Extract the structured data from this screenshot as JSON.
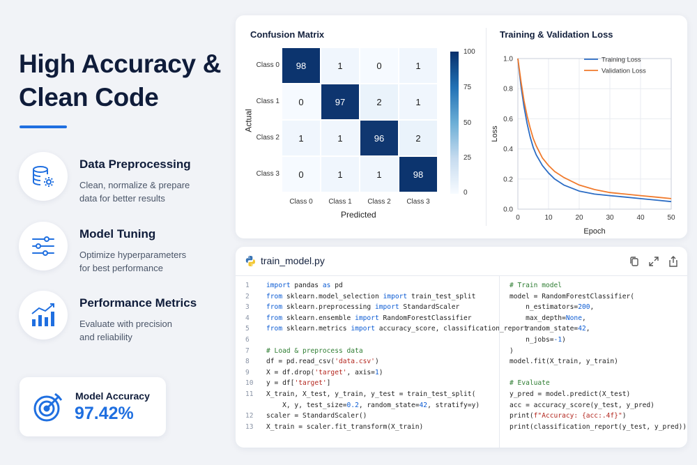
{
  "headline": {
    "line1": "High Accuracy &",
    "line2": "Clean Code"
  },
  "accent_color": "#1f6fe0",
  "features": [
    {
      "icon": "database-gear-icon",
      "title": "Data Preprocessing",
      "desc_line1": "Clean, normalize & prepare",
      "desc_line2": "data for better results"
    },
    {
      "icon": "sliders-icon",
      "title": "Model Tuning",
      "desc_line1": "Optimize hyperparameters",
      "desc_line2": "for best performance"
    },
    {
      "icon": "bar-chart-trend-icon",
      "title": "Performance Metrics",
      "desc_line1": "Evaluate with precision",
      "desc_line2": "and reliability"
    }
  ],
  "accuracy": {
    "icon": "target-icon",
    "label": "Model Accuracy",
    "value": "97.42%"
  },
  "confusion_matrix": {
    "title": "Confusion Matrix",
    "xlabel": "Predicted",
    "ylabel": "Actual",
    "classes": [
      "Class 0",
      "Class 1",
      "Class 2",
      "Class 3"
    ],
    "colorbar_ticks": [
      "100",
      "75",
      "50",
      "25",
      "0"
    ]
  },
  "loss_chart": {
    "title": "Training & Validation Loss",
    "xlabel": "Epoch",
    "ylabel": "Loss",
    "legend": [
      "Training Loss",
      "Validation Loss"
    ],
    "legend_position": "top-right"
  },
  "chart_data": [
    {
      "type": "heatmap",
      "title": "Confusion Matrix",
      "xlabel": "Predicted",
      "ylabel": "Actual",
      "x_categories": [
        "Class 0",
        "Class 1",
        "Class 2",
        "Class 3"
      ],
      "y_categories": [
        "Class 0",
        "Class 1",
        "Class 2",
        "Class 3"
      ],
      "values": [
        [
          98,
          1,
          0,
          1
        ],
        [
          0,
          97,
          2,
          1
        ],
        [
          1,
          1,
          96,
          2
        ],
        [
          0,
          1,
          1,
          98
        ]
      ],
      "colorbar_range": [
        0,
        100
      ]
    },
    {
      "type": "line",
      "title": "Training & Validation Loss",
      "xlabel": "Epoch",
      "ylabel": "Loss",
      "x": [
        0,
        1,
        2,
        3,
        4,
        5,
        6,
        8,
        10,
        12,
        15,
        20,
        25,
        30,
        35,
        40,
        45,
        50
      ],
      "series": [
        {
          "name": "Training Loss",
          "color": "#2b6cc4",
          "values": [
            1.0,
            0.82,
            0.68,
            0.57,
            0.48,
            0.41,
            0.36,
            0.29,
            0.24,
            0.2,
            0.16,
            0.12,
            0.1,
            0.09,
            0.08,
            0.07,
            0.06,
            0.05
          ]
        },
        {
          "name": "Validation Loss",
          "color": "#f07a2c",
          "values": [
            1.0,
            0.85,
            0.72,
            0.62,
            0.54,
            0.47,
            0.42,
            0.34,
            0.29,
            0.25,
            0.21,
            0.16,
            0.13,
            0.11,
            0.1,
            0.09,
            0.08,
            0.07
          ]
        }
      ],
      "xlim": [
        0,
        50
      ],
      "ylim": [
        0,
        1.0
      ],
      "xticks": [
        0,
        10,
        20,
        30,
        40,
        50
      ],
      "yticks": [
        0.0,
        0.2,
        0.4,
        0.6,
        0.8,
        1.0
      ],
      "grid": true,
      "legend_position": "top-right"
    }
  ],
  "code": {
    "filename": "train_model.py",
    "header_icons": [
      "copy-icon",
      "expand-icon",
      "share-icon"
    ],
    "left_lines": [
      {
        "n": "1",
        "segs": [
          [
            "kw",
            "import"
          ],
          [
            "t",
            " pandas "
          ],
          [
            "kw",
            "as"
          ],
          [
            "t",
            " pd"
          ]
        ]
      },
      {
        "n": "2",
        "segs": [
          [
            "kw",
            "from"
          ],
          [
            "t",
            " sklearn.model_selection "
          ],
          [
            "kw",
            "import"
          ],
          [
            "t",
            " train_test_split"
          ]
        ]
      },
      {
        "n": "3",
        "segs": [
          [
            "kw",
            "from"
          ],
          [
            "t",
            " sklearn.preprocessing "
          ],
          [
            "kw",
            "import"
          ],
          [
            "t",
            " StandardScaler"
          ]
        ]
      },
      {
        "n": "4",
        "segs": [
          [
            "kw",
            "from"
          ],
          [
            "t",
            " sklearn.ensemble "
          ],
          [
            "kw",
            "import"
          ],
          [
            "t",
            " RandomForestClassifier"
          ]
        ]
      },
      {
        "n": "5",
        "segs": [
          [
            "kw",
            "from"
          ],
          [
            "t",
            " sklearn.metrics "
          ],
          [
            "kw",
            "import"
          ],
          [
            "t",
            " accuracy_score, classification_report"
          ]
        ]
      },
      {
        "n": "6",
        "segs": []
      },
      {
        "n": "7",
        "segs": [
          [
            "cmt",
            "# Load & preprocess data"
          ]
        ]
      },
      {
        "n": "8",
        "segs": [
          [
            "t",
            "df = pd.read_csv("
          ],
          [
            "str",
            "'data.csv'"
          ],
          [
            "t",
            ")"
          ]
        ]
      },
      {
        "n": "9",
        "segs": [
          [
            "t",
            "X = df.drop("
          ],
          [
            "str",
            "'target'"
          ],
          [
            "t",
            ", axis="
          ],
          [
            "num",
            "1"
          ],
          [
            "t",
            ")"
          ]
        ]
      },
      {
        "n": "10",
        "segs": [
          [
            "t",
            "y = df["
          ],
          [
            "str",
            "'target'"
          ],
          [
            "t",
            "]"
          ]
        ]
      },
      {
        "n": "11",
        "segs": [
          [
            "t",
            "X_train, X_test, y_train, y_test = train_test_split("
          ]
        ]
      },
      {
        "n": "",
        "segs": [
          [
            "t",
            "    X, y, test_size="
          ],
          [
            "num",
            "0.2"
          ],
          [
            "t",
            ", random_state="
          ],
          [
            "num",
            "42"
          ],
          [
            "t",
            ", stratify=y)"
          ]
        ]
      },
      {
        "n": "12",
        "segs": [
          [
            "t",
            "scaler = StandardScaler()"
          ]
        ]
      },
      {
        "n": "13",
        "segs": [
          [
            "t",
            "X_train = scaler.fit_transform(X_train)"
          ]
        ]
      }
    ],
    "right_lines": [
      {
        "segs": [
          [
            "cmt",
            "# Train model"
          ]
        ]
      },
      {
        "segs": [
          [
            "t",
            "model = RandomForestClassifier("
          ]
        ]
      },
      {
        "segs": [
          [
            "t",
            "    n_estimators="
          ],
          [
            "num",
            "200"
          ],
          [
            "t",
            ","
          ]
        ]
      },
      {
        "segs": [
          [
            "t",
            "    max_depth="
          ],
          [
            "kw",
            "None"
          ],
          [
            "t",
            ","
          ]
        ]
      },
      {
        "segs": [
          [
            "t",
            "    random_state="
          ],
          [
            "num",
            "42"
          ],
          [
            "t",
            ","
          ]
        ]
      },
      {
        "segs": [
          [
            "t",
            "    n_jobs="
          ],
          [
            "num",
            "-1"
          ],
          [
            "t",
            ")"
          ]
        ]
      },
      {
        "segs": [
          [
            "t",
            ")"
          ]
        ]
      },
      {
        "segs": [
          [
            "t",
            "model.fit(X_train, y_train)"
          ]
        ]
      },
      {
        "segs": []
      },
      {
        "segs": [
          [
            "cmt",
            "# Evaluate"
          ]
        ]
      },
      {
        "segs": [
          [
            "t",
            "y_pred = model.predict(X_test)"
          ]
        ]
      },
      {
        "segs": [
          [
            "t",
            "acc = accuracy_score(y_test, y_pred)"
          ]
        ]
      },
      {
        "segs": [
          [
            "t",
            "print("
          ],
          [
            "str",
            "f\"Accuracy: {acc:.4f}\""
          ],
          [
            "t",
            ")"
          ]
        ]
      },
      {
        "segs": [
          [
            "t",
            "print(classification_report(y_test, y_pred))"
          ]
        ]
      }
    ]
  }
}
